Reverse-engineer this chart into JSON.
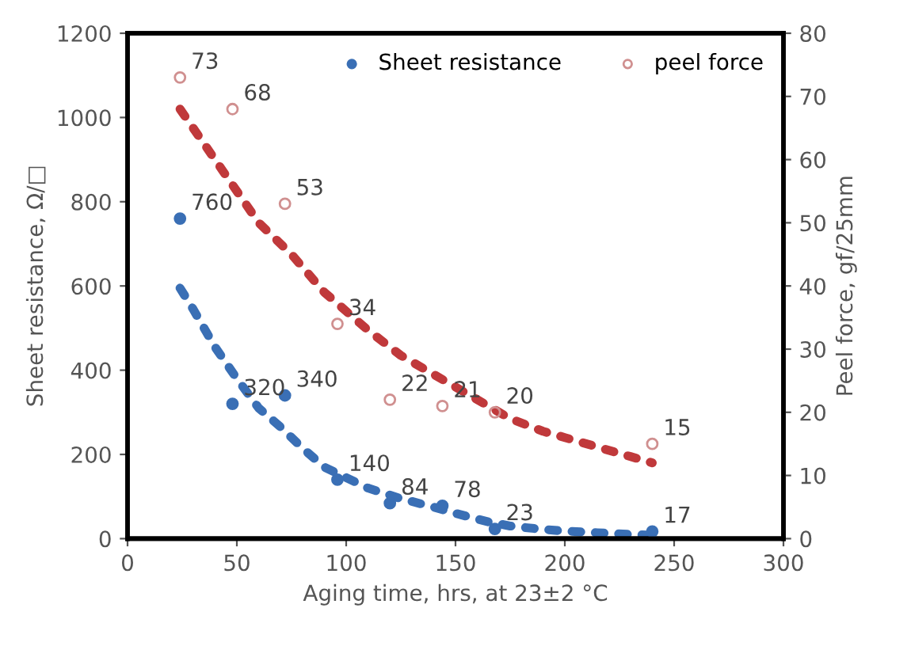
{
  "chart_data": {
    "type": "scatter",
    "xlabel": "Aging time, hrs, at 23±2 °C",
    "ylabel": "Sheet resistance, Ω/□",
    "y2label": "Peel force, gf/25mm",
    "xlim": [
      0,
      300
    ],
    "xticks": [
      0,
      50,
      100,
      150,
      200,
      250,
      300
    ],
    "ylim": [
      0,
      1200
    ],
    "yticks": [
      0,
      200,
      400,
      600,
      800,
      1000,
      1200
    ],
    "y2lim": [
      0,
      80
    ],
    "y2ticks": [
      0,
      10,
      20,
      30,
      40,
      50,
      60,
      70,
      80
    ],
    "grid": false,
    "legend": "top right",
    "series": [
      {
        "type": "line",
        "color": "#c0393b",
        "line_style": "dotted",
        "axis": "y2",
        "x": [
          24,
          30,
          40,
          50,
          60,
          75,
          90,
          100,
          110,
          125,
          140,
          150,
          165,
          175,
          190,
          200,
          215,
          230,
          240
        ],
        "values": [
          68,
          65,
          60,
          55,
          50,
          45,
          39,
          36,
          33,
          29,
          26,
          24,
          21,
          19,
          17,
          16,
          14.5,
          13,
          12
        ]
      },
      {
        "type": "line",
        "color": "#3a6fb5",
        "line_style": "dotted",
        "x": [
          24,
          30,
          35,
          40,
          50,
          60,
          70,
          80,
          90,
          100,
          110,
          125,
          140,
          150,
          165,
          175,
          190,
          200,
          215,
          230,
          240
        ],
        "values": [
          595,
          545,
          500,
          455,
          380,
          310,
          265,
          215,
          170,
          145,
          120,
          95,
          75,
          60,
          40,
          30,
          22,
          18,
          14,
          10,
          8
        ]
      },
      {
        "name": "Sheet resistance",
        "color": "#3a6fb5",
        "marker": "circle",
        "x": [
          24,
          48,
          72,
          96,
          120,
          144,
          168,
          240
        ],
        "values": [
          760,
          320,
          340,
          140,
          84,
          78,
          23,
          17
        ],
        "value_labels": [
          "760",
          "320",
          "340",
          "140",
          "84",
          "78",
          "23",
          "17"
        ]
      },
      {
        "name": "peel force",
        "color": "#d09090",
        "marker": "circle",
        "axis": "y2",
        "x": [
          24,
          48,
          72,
          96,
          120,
          144,
          168,
          240
        ],
        "values": [
          73,
          68,
          53,
          34,
          22,
          21,
          20,
          15
        ],
        "value_labels": [
          "73",
          "68",
          "53",
          "34",
          "22",
          "21",
          "20",
          "15"
        ]
      }
    ]
  }
}
